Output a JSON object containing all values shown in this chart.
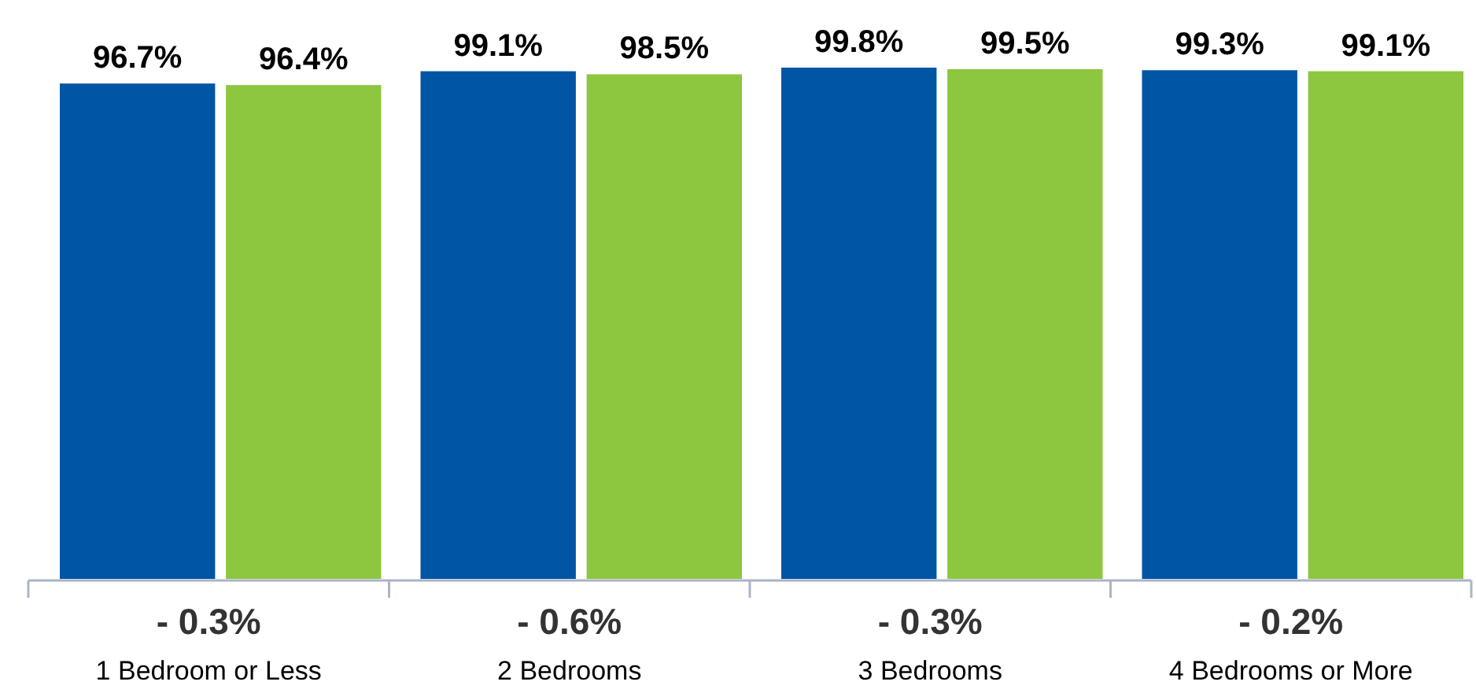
{
  "chart_data": {
    "type": "bar",
    "categories": [
      "1 Bedroom or Less",
      "2 Bedrooms",
      "3 Bedrooms",
      "4 Bedrooms or More"
    ],
    "series": [
      {
        "color": "#0055a5",
        "values": [
          96.7,
          99.1,
          99.8,
          99.3
        ],
        "value_labels": [
          "96.7%",
          "99.1%",
          "99.8%",
          "99.3%"
        ]
      },
      {
        "color": "#8dc63f",
        "values": [
          96.4,
          98.5,
          99.5,
          99.1
        ],
        "value_labels": [
          "96.4%",
          "98.5%",
          "99.5%",
          "99.1%"
        ]
      }
    ],
    "annotations": [
      "- 0.3%",
      "- 0.6%",
      "- 0.3%",
      "- 0.2%"
    ],
    "grid": false
  }
}
